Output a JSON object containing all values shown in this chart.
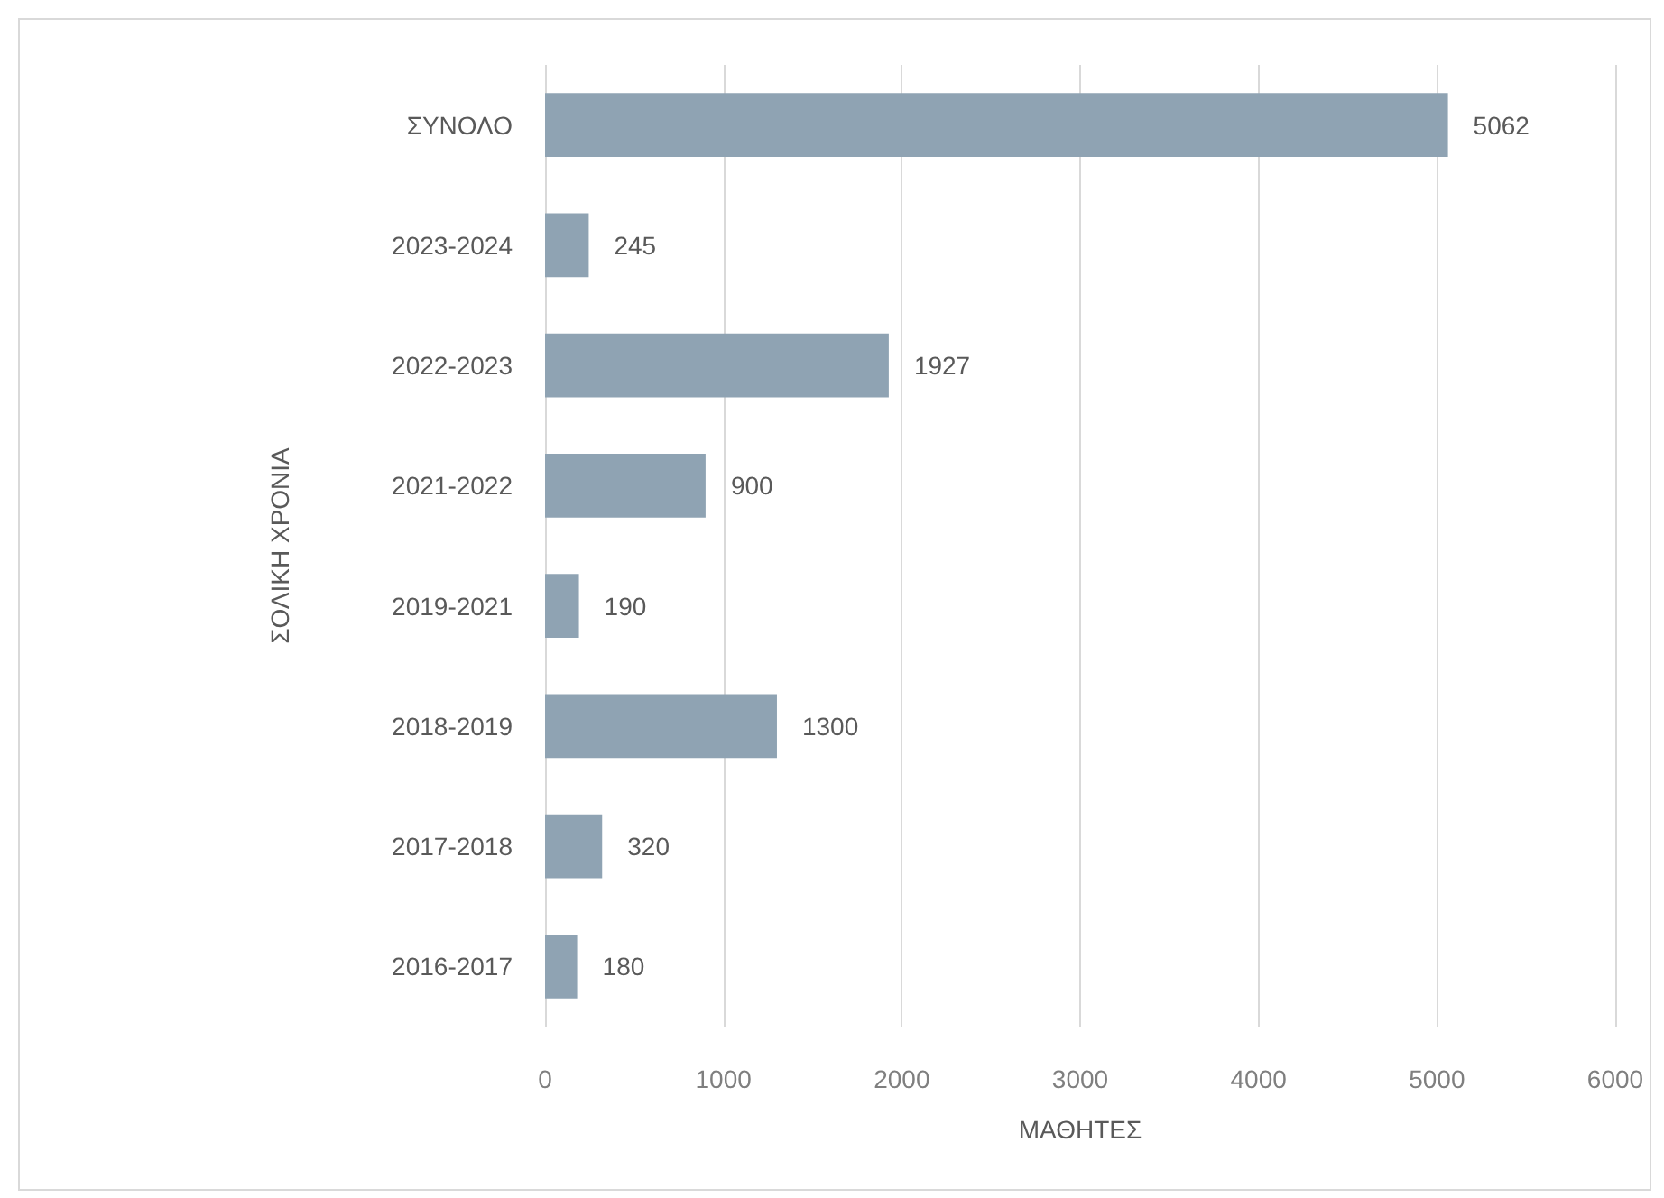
{
  "chart_data": {
    "type": "bar",
    "orientation": "horizontal",
    "categories": [
      "ΣΥΝΟΛΟ",
      "2023-2024",
      "2022-2023",
      "2021-2022",
      "2019-2021",
      "2018-2019",
      "2017-2018",
      "2016-2017"
    ],
    "values": [
      5062,
      245,
      1927,
      900,
      190,
      1300,
      320,
      180
    ],
    "color": "#8fa3b3",
    "xlim": [
      0,
      6000
    ],
    "xticks": [
      0,
      1000,
      2000,
      3000,
      4000,
      5000,
      6000
    ],
    "grid": "x",
    "data_labels": true,
    "xlabel": "ΜΑΘΗΤΕΣ",
    "ylabel": "ΣΟΛΙΚΗ ΧΡΟΝΙΑ"
  }
}
